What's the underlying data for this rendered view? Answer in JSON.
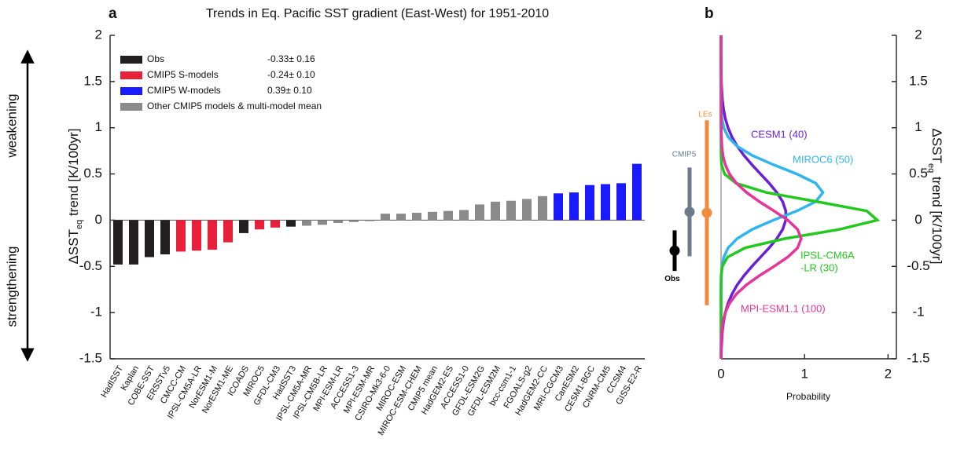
{
  "chart_data": [
    {
      "type": "bar",
      "panel": "a",
      "title": "Trends in Eq. Pacific SST gradient (East-West) for 1951-2010",
      "ylabel": [
        "ΔSST",
        "eq",
        " trend [K/100yr]"
      ],
      "side_labels": [
        "weakening",
        "strengthening"
      ],
      "categories": [
        "HadISST",
        "Kaplan",
        "COBE-SST",
        "ERSSTv5",
        "CMCC-CM",
        "IPSL-CM5A-LR",
        "NorESM1-M",
        "NorESM1-ME",
        "ICOADS",
        "MIROC5",
        "GFDL-CM3",
        "HadSST3",
        "IPSL-CM5A-MR",
        "IPSL-CM5B-LR",
        "MPI-ESM-LR",
        "ACCESS1-3",
        "MPI-ESM-MR",
        "CSIRO-Mk3-6-0",
        "MIROC-ESM",
        "MIROC-ESM-CHEM",
        "CMIP5 mean",
        "HadGEM2-ES",
        "ACCESS1-0",
        "GFDL-ESM2G",
        "GFDL-ESM2M",
        "bcc-csm1-1",
        "FGOALS-g2",
        "HadGEM2-CC",
        "MRI-CGCM3",
        "CanESM2",
        "CESM1-BGC",
        "CNRM-CM5",
        "CCSM4",
        "GISS-E2-R"
      ],
      "values": [
        -0.48,
        -0.48,
        -0.4,
        -0.37,
        -0.34,
        -0.33,
        -0.32,
        -0.24,
        -0.14,
        -0.1,
        -0.08,
        -0.07,
        -0.06,
        -0.05,
        -0.03,
        -0.02,
        -0.01,
        0.07,
        0.07,
        0.08,
        0.09,
        0.1,
        0.11,
        0.17,
        0.2,
        0.21,
        0.23,
        0.26,
        0.29,
        0.3,
        0.38,
        0.39,
        0.4,
        0.61
      ],
      "colors": [
        "#231f20",
        "#231f20",
        "#231f20",
        "#231f20",
        "#e8203a",
        "#e8203a",
        "#e8203a",
        "#e8203a",
        "#231f20",
        "#e8203a",
        "#e8203a",
        "#231f20",
        "#8a8a8a",
        "#8a8a8a",
        "#8a8a8a",
        "#8a8a8a",
        "#8a8a8a",
        "#8a8a8a",
        "#8a8a8a",
        "#8a8a8a",
        "#8a8a8a",
        "#8a8a8a",
        "#8a8a8a",
        "#8a8a8a",
        "#8a8a8a",
        "#8a8a8a",
        "#8a8a8a",
        "#8a8a8a",
        "#1a1aff",
        "#1a1aff",
        "#1a1aff",
        "#1a1aff",
        "#1a1aff",
        "#1a1aff"
      ],
      "legend": [
        {
          "name": "Obs",
          "color": "#231f20",
          "stat": "-0.33± 0.16"
        },
        {
          "name": "CMIP5 S-models",
          "color": "#e8203a",
          "stat": "-0.24± 0.10"
        },
        {
          "name": "CMIP5 W-models",
          "color": "#1a1aff",
          "stat": "0.39± 0.10"
        },
        {
          "name": "Other CMIP5 models & multi-model mean",
          "color": "#8a8a8a"
        }
      ],
      "ylim": [
        -1.5,
        2
      ],
      "yticks": [
        -1.5,
        -1,
        -0.5,
        0,
        0.5,
        1,
        1.5,
        2
      ]
    },
    {
      "type": "density",
      "panel": "b",
      "xlabel": "Probability",
      "ylabel": [
        "ΔSST",
        "eq",
        " trend [K/100yr]"
      ],
      "y": [
        -1.5,
        -1.4,
        -1.3,
        -1.2,
        -1.1,
        -1.0,
        -0.9,
        -0.8,
        -0.7,
        -0.6,
        -0.5,
        -0.4,
        -0.3,
        -0.2,
        -0.1,
        0,
        0.1,
        0.2,
        0.3,
        0.4,
        0.5,
        0.6,
        0.7,
        0.8,
        0.9,
        1.0,
        1.1,
        1.2,
        1.3,
        1.4,
        1.5,
        1.6,
        1.7,
        1.8,
        1.9,
        2.0
      ],
      "series": [
        {
          "label": [
            "CESM1 (40)"
          ],
          "color": "#6a1fd6",
          "values": [
            0.002,
            0.004,
            0.009,
            0.016,
            0.03,
            0.051,
            0.084,
            0.131,
            0.194,
            0.275,
            0.37,
            0.473,
            0.576,
            0.668,
            0.738,
            0.775,
            0.775,
            0.738,
            0.668,
            0.576,
            0.473,
            0.37,
            0.275,
            0.194,
            0.131,
            0.084,
            0.051,
            0.03,
            0.016,
            0.009,
            0.004,
            0.002,
            0.001,
            0,
            0,
            0
          ]
        },
        {
          "label": [
            "MIROC6 (50)"
          ],
          "color": "#2eb4ee",
          "values": [
            0,
            0,
            0,
            0,
            0,
            0,
            0,
            0,
            0.001,
            0.003,
            0.011,
            0.033,
            0.085,
            0.192,
            0.373,
            0.627,
            0.908,
            1.133,
            1.22,
            1.133,
            0.908,
            0.627,
            0.373,
            0.192,
            0.085,
            0.033,
            0.011,
            0.003,
            0.001,
            0,
            0,
            0,
            0,
            0,
            0,
            0
          ]
        },
        {
          "label": [
            "IPSL-CM6A",
            "-LR (30)"
          ],
          "color": "#22c81e",
          "values": [
            0,
            0,
            0,
            0,
            0,
            0,
            0,
            0,
            0,
            0.002,
            0.015,
            0.078,
            0.289,
            0.761,
            1.418,
            1.871,
            1.746,
            1.152,
            0.538,
            0.178,
            0.042,
            0.007,
            0.001,
            0,
            0,
            0,
            0,
            0,
            0,
            0,
            0,
            0,
            0,
            0,
            0,
            0
          ]
        },
        {
          "label": [
            "MPI-ESM1.1 (100)"
          ],
          "color": "#e6349a",
          "values": [
            0,
            0.001,
            0.004,
            0.01,
            0.023,
            0.051,
            0.101,
            0.184,
            0.305,
            0.46,
            0.635,
            0.799,
            0.917,
            0.96,
            0.917,
            0.799,
            0.635,
            0.46,
            0.305,
            0.184,
            0.101,
            0.051,
            0.023,
            0.01,
            0.004,
            0.001,
            0,
            0,
            0,
            0,
            0,
            0,
            0,
            0,
            0,
            0
          ]
        }
      ],
      "errorbars": [
        {
          "label": "Obs",
          "value": -0.33,
          "error": 0.22,
          "color": "#000000"
        },
        {
          "label": "CMIP5",
          "value": 0.09,
          "error": 0.48,
          "color": "#6b7b8c"
        },
        {
          "label": "LEs",
          "value": 0.08,
          "error": 1.0,
          "color": "#f08a3c"
        }
      ],
      "xlim": [
        0,
        2.1
      ],
      "xticks": [
        0,
        1,
        2
      ],
      "ylim": [
        -1.5,
        2
      ],
      "yticks": [
        -1.5,
        -1,
        -0.5,
        0,
        0.5,
        1,
        1.5,
        2
      ]
    }
  ]
}
